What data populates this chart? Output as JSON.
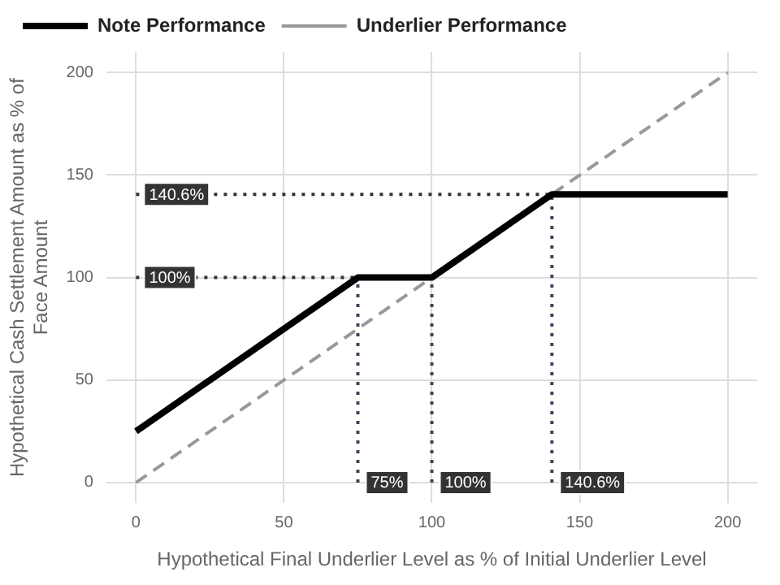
{
  "chart_data": {
    "type": "line",
    "xlabel": "Hypothetical Final Underlier Level as % of Initial Underlier Level",
    "ylabel": "Hypothetical Cash Settlement Amount as % of Face Amount",
    "xlim": [
      -10,
      210
    ],
    "ylim": [
      -10,
      210
    ],
    "xticks": [
      0,
      50,
      100,
      150,
      200
    ],
    "yticks": [
      0,
      50,
      100,
      150,
      200
    ],
    "grid": true,
    "legend": "top left",
    "marker": "none",
    "series": [
      {
        "name": "Note Performance",
        "color": "#000000",
        "x": [
          0,
          75,
          100,
          140.6,
          200
        ],
        "values": [
          25,
          100,
          100,
          140.6,
          140.6
        ],
        "line_style": "solid"
      },
      {
        "name": "Underlier Performance",
        "color": "#999999",
        "x": [
          0,
          200
        ],
        "values": [
          0,
          200
        ],
        "line_style": "dashed"
      },
      {
        "color": "#333333",
        "x": [
          0,
          140.6
        ],
        "values": [
          140.6,
          140.6
        ],
        "line_style": "dotted"
      },
      {
        "color": "#333333",
        "x": [
          0,
          75
        ],
        "values": [
          100,
          100
        ],
        "line_style": "dotted"
      },
      {
        "color": "#34495e",
        "x": [
          75,
          75
        ],
        "values": [
          0,
          100
        ],
        "line_style": "dotted"
      },
      {
        "color": "#34495e",
        "x": [
          100,
          100
        ],
        "values": [
          0,
          100
        ],
        "line_style": "dotted"
      },
      {
        "color": "#34495e",
        "x": [
          140.6,
          140.6
        ],
        "values": [
          0,
          140.6
        ],
        "line_style": "dotted"
      }
    ],
    "annotations": [
      {
        "text": "140.6%",
        "x": 0,
        "y": 140.6
      },
      {
        "text": "100%",
        "x": 0,
        "y": 100
      },
      {
        "text": "75%",
        "x": 75,
        "y": 0
      },
      {
        "text": "100%",
        "x": 100,
        "y": 0
      },
      {
        "text": "140.6%",
        "x": 140.6,
        "y": 0
      }
    ]
  }
}
